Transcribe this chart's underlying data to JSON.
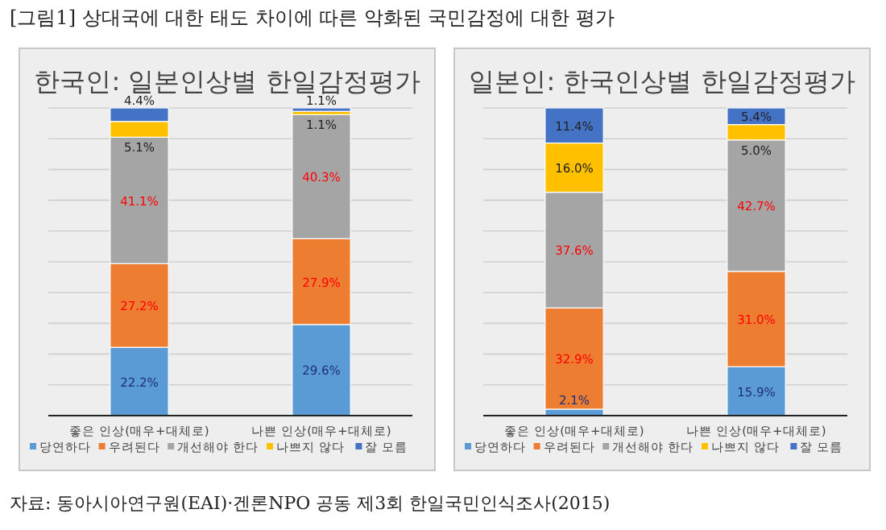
{
  "chart_data": [
    {
      "type": "bar",
      "stacked": true,
      "title": "한국인: 일본인상별 한일감정평가",
      "annotations": [
        "[그림1] 상대국에 대한 태도 차이에 따른 악화된 국민감정에 대한 평가"
      ],
      "categories": [
        "좋은 인상(매우+대체로)",
        "나쁜 인상(매우+대체로)"
      ],
      "series": [
        {
          "name": "당연하다",
          "color": "#5b9bd5",
          "values": [
            22.2,
            29.6
          ],
          "value_labels": [
            "22.2%",
            "29.6%"
          ]
        },
        {
          "name": "우려된다",
          "color": "#ed7d31",
          "values": [
            27.2,
            27.9
          ],
          "value_labels": [
            "27.2%",
            "27.9%"
          ]
        },
        {
          "name": "개선해야 한다",
          "color": "#a5a5a5",
          "values": [
            41.1,
            40.3
          ],
          "value_labels": [
            "41.1%",
            "40.3%"
          ]
        },
        {
          "name": "나쁘지 않다",
          "color": "#ffc000",
          "values": [
            5.1,
            1.1
          ],
          "value_labels": [
            "5.1%",
            "1.1%"
          ]
        },
        {
          "name": "잘 모름",
          "color": "#4472c4",
          "values": [
            4.4,
            1.1
          ],
          "value_labels": [
            "4.4%",
            "1.1%"
          ]
        }
      ],
      "ylim": [
        0,
        100
      ],
      "yticks": [
        {
          "value": 0,
          "label": null
        },
        {
          "value": 10,
          "label": null
        },
        {
          "value": 20,
          "label": null
        },
        {
          "value": 30,
          "label": null
        },
        {
          "value": 40,
          "label": null
        },
        {
          "value": 50,
          "label": null
        },
        {
          "value": 60,
          "label": null
        },
        {
          "value": 70,
          "label": null
        },
        {
          "value": 80,
          "label": null
        },
        {
          "value": 90,
          "label": null
        },
        {
          "value": 100,
          "label": null
        }
      ],
      "tick_labels": "x",
      "grid": "y",
      "legend": "bottom"
    },
    {
      "type": "bar",
      "stacked": true,
      "title": "일본인: 한국인상별 한일감정평가",
      "annotations": [
        "자료: 동아시아연구원(EAI)·겐론NPO 공동 제3회 한일국민인식조사(2015)"
      ],
      "categories": [
        "좋은 인상(매우+대체로)",
        "나쁜 인상(매우+대체로)"
      ],
      "series": [
        {
          "name": "당연하다",
          "color": "#5b9bd5",
          "values": [
            2.1,
            15.9
          ],
          "value_labels": [
            "2.1%",
            "15.9%"
          ]
        },
        {
          "name": "우려된다",
          "color": "#ed7d31",
          "values": [
            32.9,
            31.0
          ],
          "value_labels": [
            "32.9%",
            "31.0%"
          ]
        },
        {
          "name": "개선해야 한다",
          "color": "#a5a5a5",
          "values": [
            37.6,
            42.7
          ],
          "value_labels": [
            "37.6%",
            "42.7%"
          ]
        },
        {
          "name": "나쁘지 않다",
          "color": "#ffc000",
          "values": [
            16.0,
            5.0
          ],
          "value_labels": [
            "16.0%",
            "5.0%"
          ]
        },
        {
          "name": "잘 모름",
          "color": "#4472c4",
          "values": [
            11.4,
            5.4
          ],
          "value_labels": [
            "11.4%",
            "5.4%"
          ]
        }
      ],
      "ylim": [
        0,
        100
      ],
      "yticks": [
        {
          "value": 0,
          "label": null
        },
        {
          "value": 10,
          "label": null
        },
        {
          "value": 20,
          "label": null
        },
        {
          "value": 30,
          "label": null
        },
        {
          "value": 40,
          "label": null
        },
        {
          "value": 50,
          "label": null
        },
        {
          "value": 60,
          "label": null
        },
        {
          "value": 70,
          "label": null
        },
        {
          "value": 80,
          "label": null
        },
        {
          "value": 90,
          "label": null
        },
        {
          "value": 100,
          "label": null
        }
      ],
      "tick_labels": "x",
      "grid": "y",
      "legend": "bottom"
    }
  ]
}
